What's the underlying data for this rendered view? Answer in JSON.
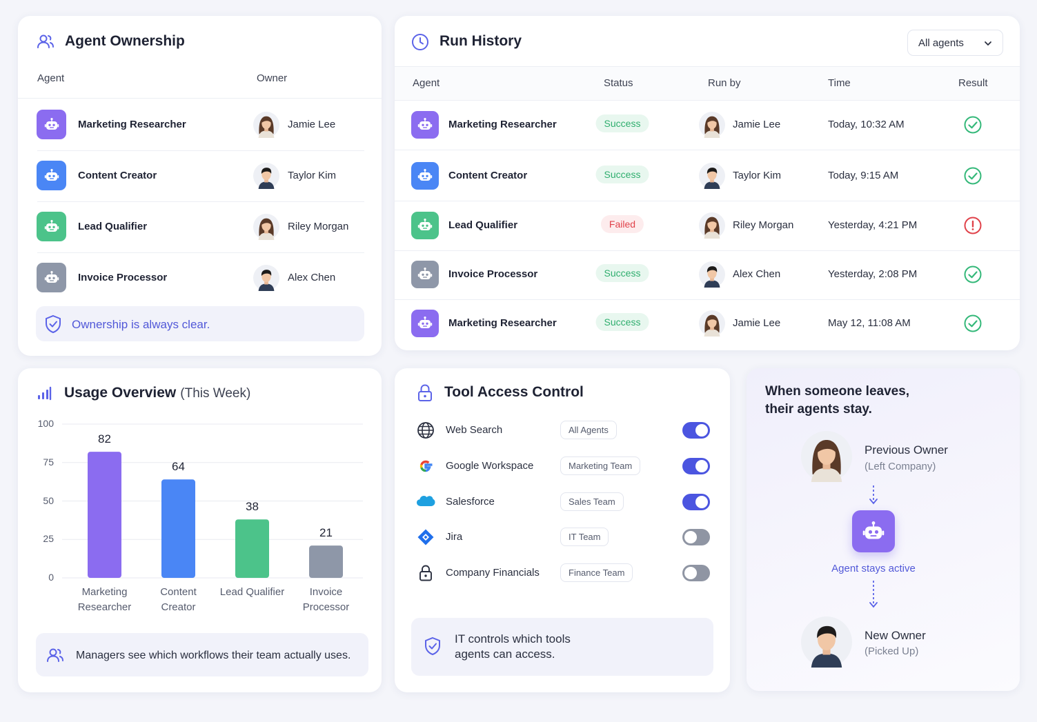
{
  "ownership": {
    "title": "Agent Ownership",
    "columns": [
      "Agent",
      "Owner"
    ],
    "rows": [
      {
        "agent": "Marketing Researcher",
        "owner": "Jamie Lee",
        "color": "#8b6cf0"
      },
      {
        "agent": "Content Creator",
        "owner": "Taylor Kim",
        "color": "#4a86f5"
      },
      {
        "agent": "Lead Qualifier",
        "owner": "Riley Morgan",
        "color": "#4cc38a"
      },
      {
        "agent": "Invoice Processor",
        "owner": "Alex Chen",
        "color": "#8e97a8"
      }
    ],
    "note": "Ownership is always clear."
  },
  "run_history": {
    "title": "Run History",
    "filter": "All agents",
    "columns": [
      "Agent",
      "Status",
      "Run by",
      "Time",
      "Result"
    ],
    "rows": [
      {
        "agent": "Marketing Researcher",
        "status": "Success",
        "run_by": "Jamie Lee",
        "time": "Today, 10:32 AM",
        "ok": true,
        "color": "#8b6cf0"
      },
      {
        "agent": "Content Creator",
        "status": "Success",
        "run_by": "Taylor Kim",
        "time": "Today, 9:15 AM",
        "ok": true,
        "color": "#4a86f5"
      },
      {
        "agent": "Lead Qualifier",
        "status": "Failed",
        "run_by": "Riley Morgan",
        "time": "Yesterday, 4:21 PM",
        "ok": false,
        "color": "#4cc38a"
      },
      {
        "agent": "Invoice Processor",
        "status": "Success",
        "run_by": "Alex Chen",
        "time": "Yesterday, 2:08 PM",
        "ok": true,
        "color": "#8e97a8"
      },
      {
        "agent": "Marketing Researcher",
        "status": "Success",
        "run_by": "Jamie Lee",
        "time": "May 12, 11:08 AM",
        "ok": true,
        "color": "#8b6cf0"
      }
    ]
  },
  "usage": {
    "type": "bar",
    "title": "Usage Overview",
    "subtitle": "(This Week)",
    "categories": [
      "Marketing Researcher",
      "Content Creator",
      "Lead Qualifier",
      "Invoice Processor"
    ],
    "values": [
      82,
      64,
      38,
      21
    ],
    "colors": [
      "#8b6cf0",
      "#4a86f5",
      "#4cc38a",
      "#8e97a8"
    ],
    "ylim": [
      0,
      100
    ],
    "yticks": [
      0,
      25,
      50,
      75,
      100
    ],
    "grid": true,
    "note": "Managers see which workflows their team actually uses."
  },
  "tool_access": {
    "title": "Tool Access Control",
    "tools": [
      {
        "name": "Web Search",
        "scope": "All Agents",
        "enabled": true
      },
      {
        "name": "Google Workspace",
        "scope": "Marketing Team",
        "enabled": true
      },
      {
        "name": "Salesforce",
        "scope": "Sales Team",
        "enabled": true
      },
      {
        "name": "Jira",
        "scope": "IT Team",
        "enabled": false
      },
      {
        "name": "Company Financials",
        "scope": "Finance Team",
        "enabled": false
      }
    ],
    "note": "IT controls which tools agents can access."
  },
  "handover": {
    "title": "When someone leaves, their agents stay.",
    "previous_owner": "Previous Owner",
    "previous_note": "(Left Company)",
    "agent_status": "Agent stays active",
    "new_owner": "New Owner",
    "new_note": "(Picked Up)"
  }
}
